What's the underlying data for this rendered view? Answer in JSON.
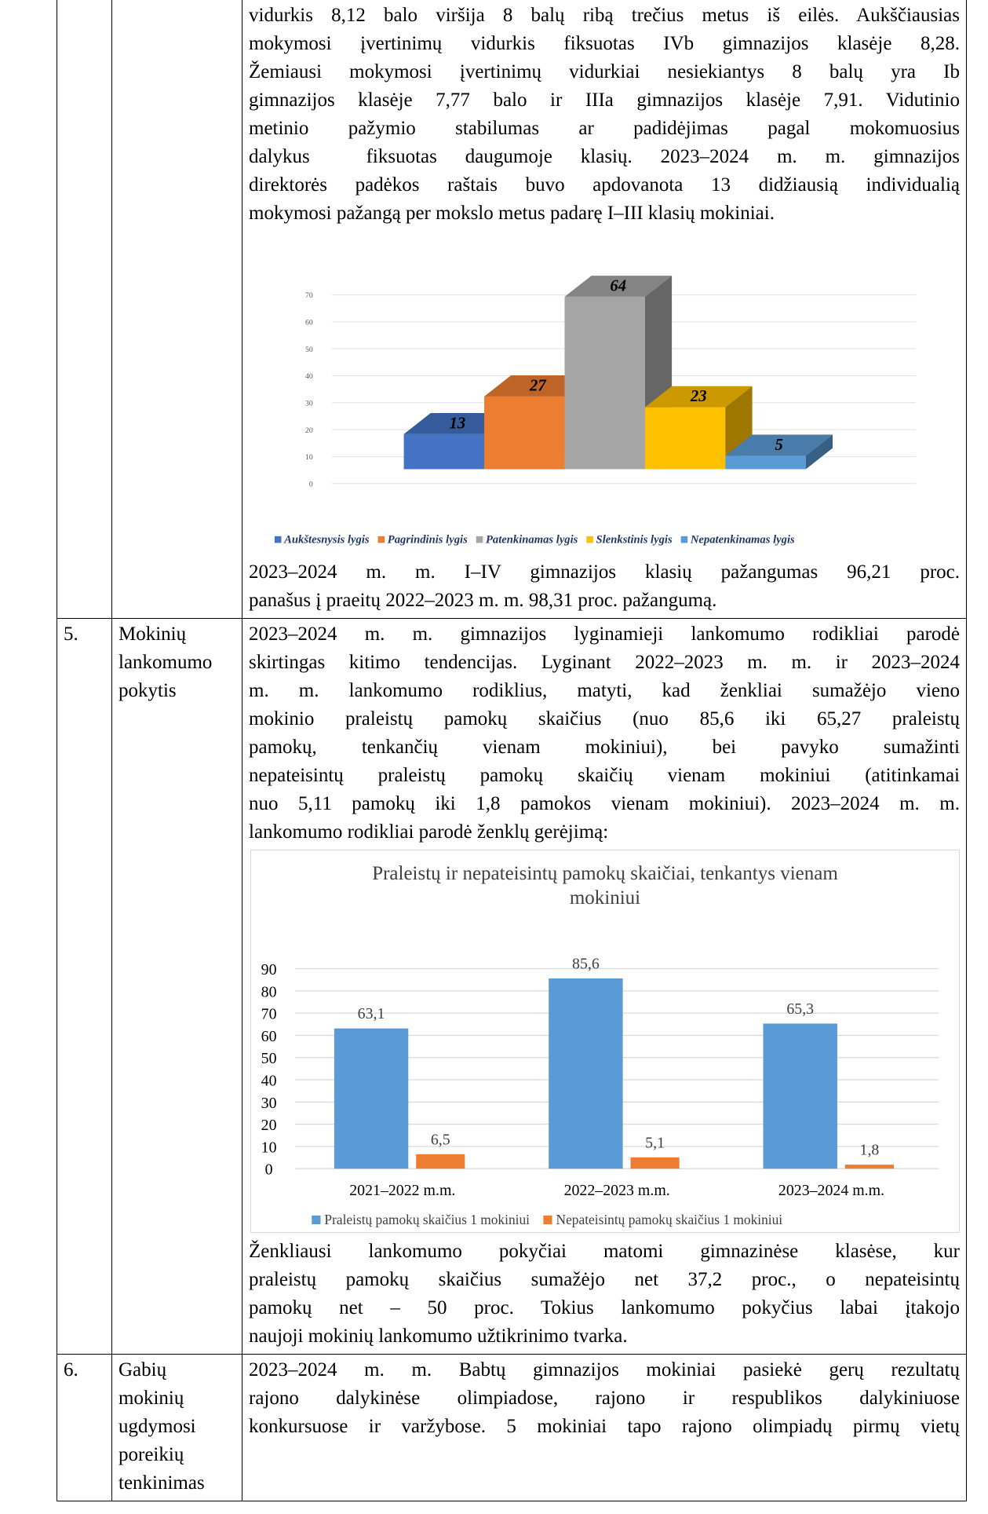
{
  "table": {
    "rows": [
      {
        "text_before": [
          "vidurkis 8,12 balo viršija 8 balų ribą trečius metus iš eilės. Aukščiausias",
          "mokymosi įvertinimų vidurkis fiksuotas IVb gimnazijos klasėje 8,28.",
          "Žemiausi mokymosi įvertinimų vidurkiai nesiekiantys 8 balų yra Ib",
          "gimnazijos klasėje 7,77 balo ir IIIa gimnazijos klasėje 7,91. Vidutinio",
          "metinio pažymio stabilumas ar padidėjimas pagal mokomuosius",
          "dalykus  fiksuotas daugumoje klasių. 2023–2024 m. m. gimnazijos",
          "direktorės padėkos raštais buvo apdovanota 13 didžiausią individualią",
          "mokymosi pažangą per mokslo metus padarę I–III klasių mokiniai."
        ],
        "text_after": [
          "2023–2024 m. m. I–IV gimnazijos klasių pažangumas 96,21 proc.",
          "panašus į praeitų 2022–2023 m. m. 98,31 proc. pažangumą."
        ]
      },
      {
        "number": "5.",
        "topic": [
          "Mokinių",
          "lankomumo",
          "pokytis"
        ],
        "text_before": [
          "2023–2024 m. m. gimnazijos lyginamieji lankomumo rodikliai parodė",
          "skirtingas kitimo tendencijas. Lyginant 2022–2023 m. m. ir 2023–2024",
          "m. m. lankomumo rodiklius, matyti, kad ženkliai sumažėjo vieno",
          "mokinio praleistų pamokų skaičius (nuo 85,6 iki 65,27 praleistų",
          "pamokų, tenkančių vienam mokiniui), bei pavyko sumažinti",
          "nepateisintų praleistų pamokų skaičių vienam mokiniui (atitinkamai",
          "nuo 5,11 pamokų iki 1,8 pamokos vienam mokiniui). 2023–2024 m. m.",
          "lankomumo rodikliai parodė ženklų gerėjimą:"
        ],
        "text_after": [
          "Ženkliausi lankomumo pokyčiai matomi gimnazinėse klasėse, kur",
          "praleistų pamokų skaičius sumažėjo net 37,2 proc., o nepateisintų",
          "pamokų net – 50 proc. Tokius lankomumo pokyčius labai įtakojo",
          "naujoji mokinių lankomumo užtikrinimo tvarka."
        ]
      },
      {
        "number": "6.",
        "topic": [
          "Gabių mokinių",
          "ugdymosi",
          "poreikių",
          "tenkinimas"
        ],
        "text_before": [
          "2023–2024 m. m. Babtų gimnazijos mokiniai pasiekė gerų rezultatų",
          "rajono dalykinėse olimpiadose, rajono ir respublikos dalykiniuose",
          "konkursuose ir varžybose. 5 mokiniai tapo rajono olimpiadų pirmų vietų"
        ]
      }
    ]
  },
  "chart_data": [
    {
      "type": "bar3d",
      "categories": [
        "Aukštesnysis lygis",
        "Pagrindinis lygis",
        "Patenkinamas lygis",
        "Slenkstinis lygis",
        "Nepatenkinamas lygis"
      ],
      "values": [
        13,
        27,
        64,
        23,
        5
      ],
      "colors": [
        "#4472c4",
        "#ed7d31",
        "#a5a5a5",
        "#ffc000",
        "#5b9bd5"
      ],
      "ylim": [
        0,
        70
      ],
      "yticks": [
        0,
        10,
        20,
        30,
        40,
        50,
        60,
        70
      ],
      "grid": true,
      "legend": "bottom"
    },
    {
      "type": "bar",
      "title": "Praleistų ir nepateisintų pamokų skaičiai, tenkantys vienam mokiniui",
      "categories": [
        "2021–2022 m.m.",
        "2022–2023 m.m.",
        "2023–2024 m.m."
      ],
      "series": [
        {
          "name": "Praleistų pamokų skaičius 1 mokiniui",
          "color": "#5b9bd5",
          "values": [
            63.1,
            85.6,
            65.3
          ],
          "value_labels": [
            "63,1",
            "85,6",
            "65,3"
          ]
        },
        {
          "name": "Nepateisintų pamokų skaičius 1 mokiniui",
          "color": "#ed7d31",
          "values": [
            6.5,
            5.1,
            1.8
          ],
          "value_labels": [
            "6,5",
            "5,1",
            "1,8"
          ]
        }
      ],
      "ylim": [
        0,
        90
      ],
      "yticks": [
        0,
        10,
        20,
        30,
        40,
        50,
        60,
        70,
        80,
        90
      ],
      "grid": true,
      "legend": "bottom"
    }
  ]
}
